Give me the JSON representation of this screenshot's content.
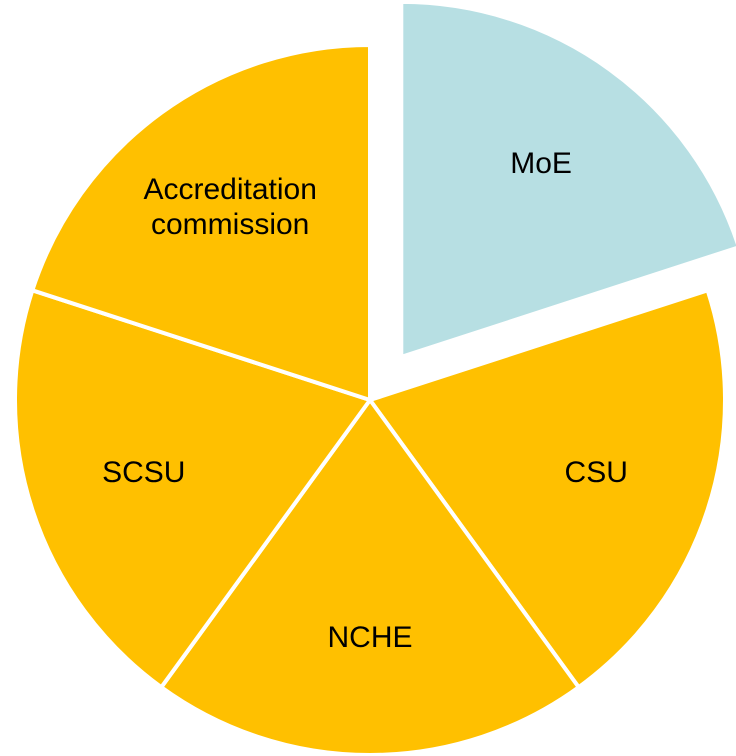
{
  "chart_data": {
    "type": "pie",
    "categories": [
      "MoE",
      "CSU",
      "NCHE",
      "SCSU",
      "Accreditation commission"
    ],
    "values": [
      20,
      20,
      20,
      20,
      20
    ],
    "colors": [
      "#b7dfe3",
      "#ffc000",
      "#ffc000",
      "#ffc000",
      "#ffc000"
    ],
    "explode": [
      0.15,
      0,
      0,
      0,
      0
    ]
  }
}
